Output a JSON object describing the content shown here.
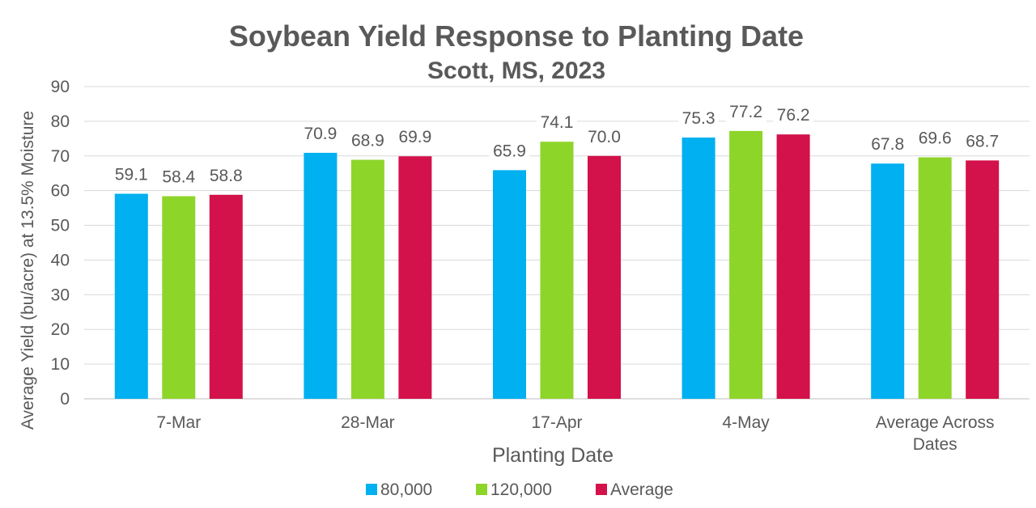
{
  "chart_data": {
    "type": "bar",
    "title": "Soybean Yield Response to Planting Date",
    "subtitle": "Scott, MS, 2023",
    "xlabel": "Planting Date",
    "ylabel": "Average Yield (bu/acre) at 13.5% Moisture",
    "ylim": [
      0,
      90
    ],
    "yticks": [
      "0",
      "10",
      "20",
      "30",
      "40",
      "50",
      "60",
      "70",
      "80",
      "90"
    ],
    "grid": true,
    "legend_position": "bottom",
    "categories": [
      [
        "7-Mar"
      ],
      [
        "28-Mar"
      ],
      [
        "17-Apr"
      ],
      [
        "4-May"
      ],
      [
        "Average Across",
        "Dates"
      ]
    ],
    "series": [
      {
        "name": "80,000",
        "color": "#00B0F0",
        "values": [
          59.1,
          70.9,
          65.9,
          75.3,
          67.8
        ],
        "labels": [
          "59.1",
          "70.9",
          "65.9",
          "75.3",
          "67.8"
        ]
      },
      {
        "name": "120,000",
        "color": "#8ED52A",
        "values": [
          58.4,
          68.9,
          74.1,
          77.2,
          69.6
        ],
        "labels": [
          "58.4",
          "68.9",
          "74.1",
          "77.2",
          "69.6"
        ]
      },
      {
        "name": "Average",
        "color": "#D3114A",
        "values": [
          58.8,
          69.9,
          70.0,
          76.2,
          68.7
        ],
        "labels": [
          "58.8",
          "69.9",
          "70.0",
          "76.2",
          "68.7"
        ]
      }
    ]
  }
}
